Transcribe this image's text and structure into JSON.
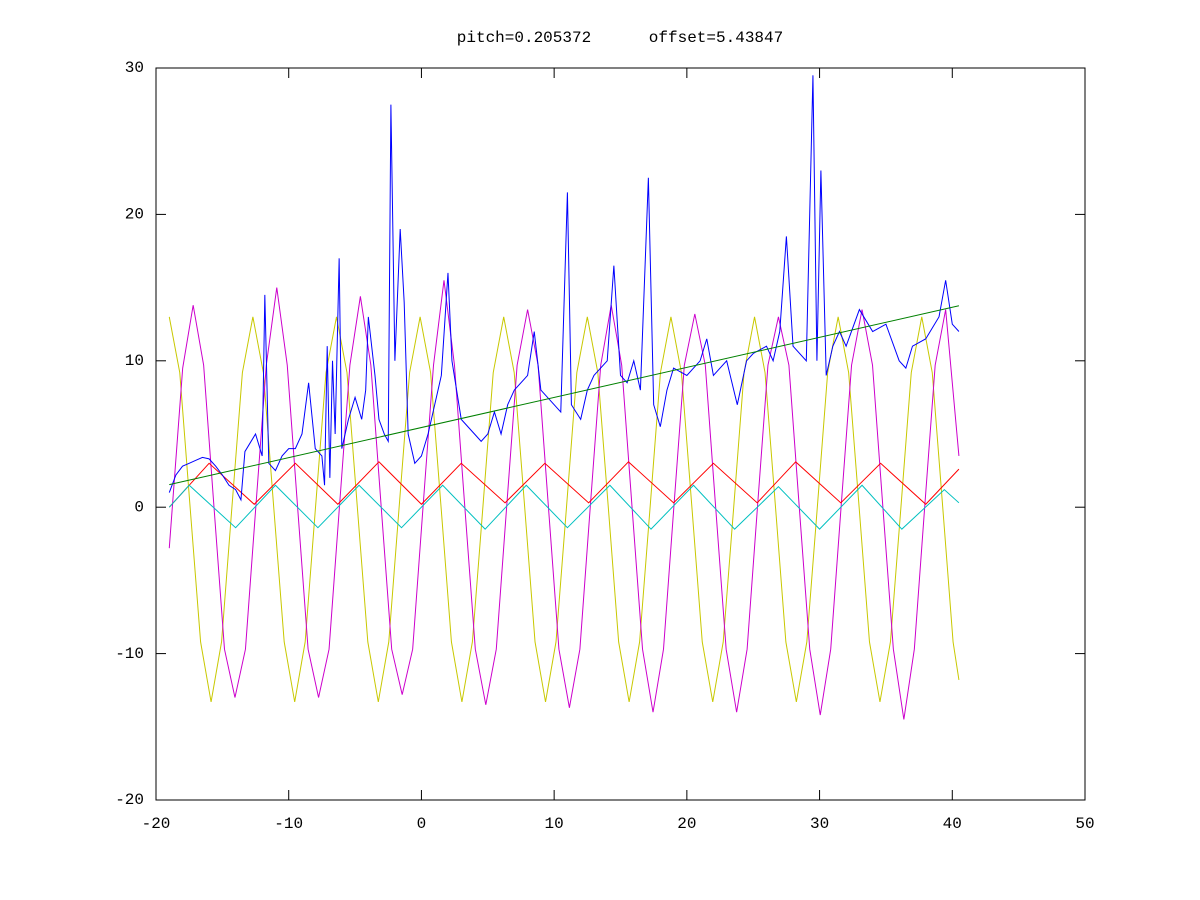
{
  "chart_data": {
    "type": "line",
    "title": "pitch=0.205372      offset=5.43847",
    "xlim": [
      -20,
      50
    ],
    "xticks": [
      -20,
      -10,
      0,
      10,
      20,
      30,
      40,
      50
    ],
    "ylim": [
      -20,
      30
    ],
    "yticks": [
      -20,
      -10,
      0,
      10,
      20,
      30
    ],
    "series": [
      {
        "color": "#c8c800",
        "x": [
          -19,
          -18.21,
          -17.43,
          -16.64,
          -15.85,
          -15.06,
          -14.28,
          -13.49,
          -12.7,
          -11.91,
          -11.13,
          -10.34,
          -9.55,
          -8.76,
          -7.98,
          -7.19,
          -6.4,
          -5.61,
          -4.83,
          -4.04,
          -3.25,
          -2.46,
          -1.68,
          -0.89,
          -0.1,
          0.69,
          1.48,
          2.26,
          3.05,
          3.84,
          4.63,
          5.41,
          6.2,
          6.99,
          7.78,
          8.56,
          9.35,
          10.14,
          10.93,
          11.71,
          12.5,
          13.29,
          14.08,
          14.86,
          15.65,
          16.44,
          17.23,
          18.01,
          18.8,
          19.59,
          20.38,
          21.16,
          21.95,
          22.74,
          23.53,
          24.31,
          25.1,
          25.89,
          26.68,
          27.46,
          28.25,
          29.04,
          29.83,
          30.61,
          31.4,
          32.19,
          32.98,
          33.76,
          34.55,
          35.34,
          36.13,
          36.91,
          37.7,
          38.49,
          39.28,
          40.06,
          40.5
        ],
        "values": [
          13,
          9.2,
          0,
          -9.2,
          -13.3,
          -9.2,
          0,
          9.2,
          13,
          9.2,
          0,
          -9.2,
          -13.3,
          -9.2,
          0,
          9.2,
          13,
          9.2,
          0,
          -9.2,
          -13.3,
          -9.2,
          0,
          9.2,
          13,
          9.2,
          0,
          -9.2,
          -13.3,
          -9.2,
          0,
          9.2,
          13,
          9.2,
          0,
          -9.2,
          -13.3,
          -9.2,
          0,
          9.2,
          13,
          9.2,
          0,
          -9.2,
          -13.3,
          -9.2,
          0,
          9.2,
          13,
          9.2,
          0,
          -9.2,
          -13.3,
          -9.2,
          0,
          9.2,
          13,
          9.2,
          0,
          -9.2,
          -13.3,
          -9.2,
          0,
          9.2,
          13,
          9.2,
          0,
          -9.2,
          -13.3,
          -9.2,
          0,
          9.2,
          13,
          9.2,
          0,
          -9.2,
          -11.8
        ]
      },
      {
        "color": "#cc00cc",
        "x": [
          -19,
          -17.99,
          -17.2,
          -16.41,
          -15.63,
          -14.84,
          -14.05,
          -13.26,
          -12.48,
          -11.69,
          -10.9,
          -10.11,
          -9.33,
          -8.54,
          -7.75,
          -6.96,
          -6.18,
          -5.39,
          -4.6,
          -3.81,
          -3.03,
          -2.24,
          -1.45,
          -0.66,
          0.12,
          0.91,
          1.7,
          2.49,
          3.27,
          4.06,
          4.85,
          5.64,
          6.42,
          7.21,
          8.0,
          8.79,
          9.57,
          10.36,
          11.15,
          11.94,
          12.72,
          13.51,
          14.3,
          15.09,
          15.87,
          16.66,
          17.45,
          18.24,
          19.02,
          19.81,
          20.6,
          21.39,
          22.17,
          22.96,
          23.75,
          24.54,
          25.32,
          26.11,
          26.9,
          27.69,
          28.47,
          29.26,
          30.05,
          30.84,
          31.62,
          32.41,
          33.2,
          33.99,
          34.77,
          35.56,
          36.35,
          37.14,
          37.92,
          38.71,
          39.5,
          40.5
        ],
        "values": [
          -2.8,
          9.5,
          13.8,
          9.7,
          0,
          -9.7,
          -13,
          -9.7,
          0,
          9.7,
          15,
          9.7,
          0,
          -9.7,
          -13,
          -9.7,
          0,
          9.7,
          14.4,
          9.7,
          0,
          -9.7,
          -12.8,
          -9.7,
          0,
          9.7,
          15.5,
          9.7,
          0,
          -9.7,
          -13.5,
          -9.7,
          0,
          9.7,
          13.5,
          9.7,
          0,
          -9.7,
          -13.7,
          -9.7,
          0,
          9.7,
          13.8,
          9.7,
          0,
          -9.7,
          -14,
          -9.7,
          0,
          9.7,
          13.2,
          9.7,
          0,
          -9.7,
          -14,
          -9.7,
          0,
          9.7,
          13,
          9.7,
          0,
          -9.7,
          -14.2,
          -9.7,
          0,
          9.7,
          13.5,
          9.7,
          0,
          -9.7,
          -14.5,
          -9.7,
          0,
          9.7,
          13.5,
          3.5
        ]
      },
      {
        "color": "#ff0000",
        "x": [
          -19,
          -16,
          -12.6,
          -9.5,
          -6.3,
          -3.2,
          0,
          3,
          6.3,
          9.3,
          12.6,
          15.6,
          19,
          22,
          25.3,
          28.2,
          31.6,
          34.6,
          38,
          40.5
        ],
        "values": [
          0,
          3,
          0.2,
          3,
          0.2,
          3.1,
          0.2,
          3,
          0.3,
          3,
          0.3,
          3.1,
          0.3,
          3,
          0.3,
          3.1,
          0.3,
          3,
          0.2,
          2.6
        ]
      },
      {
        "color": "#00c0c0",
        "x": [
          -19,
          -17.5,
          -14,
          -11,
          -7.8,
          -4.7,
          -1.5,
          1.6,
          4.8,
          7.9,
          11,
          14.2,
          17.3,
          20.5,
          23.6,
          26.9,
          30,
          33.2,
          36.2,
          39.4,
          40.5
        ],
        "values": [
          0,
          1.5,
          -1.4,
          1.5,
          -1.4,
          1.5,
          -1.4,
          1.5,
          -1.5,
          1.5,
          -1.4,
          1.5,
          -1.5,
          1.5,
          -1.5,
          1.4,
          -1.5,
          1.5,
          -1.5,
          1.2,
          0.3
        ]
      },
      {
        "color": "#0000ff",
        "x": [
          -19,
          -18.5,
          -18,
          -17.5,
          -17,
          -16.5,
          -16,
          -15.5,
          -15,
          -14.5,
          -14,
          -13.6,
          -13.3,
          -12.5,
          -12,
          -11.8,
          -11.5,
          -11,
          -10.5,
          -10,
          -9.5,
          -9,
          -8.5,
          -8,
          -7.5,
          -7.3,
          -7.1,
          -6.9,
          -6.7,
          -6.5,
          -6.2,
          -6,
          -5.5,
          -5,
          -4.5,
          -4.2,
          -4,
          -3.5,
          -3.2,
          -2.8,
          -2.5,
          -2.3,
          -2,
          -1.6,
          -1.3,
          -1,
          -0.5,
          0,
          0.5,
          1,
          1.5,
          2,
          2.3,
          3,
          4,
          4.5,
          5,
          5.5,
          6,
          6.5,
          7,
          8,
          8.5,
          9,
          10,
          10.5,
          11,
          11.3,
          12,
          12.5,
          13,
          14,
          14.5,
          15,
          15.5,
          16,
          16.5,
          17.1,
          17.5,
          18,
          18.5,
          19,
          20,
          21,
          21.5,
          22,
          23,
          23.8,
          24.5,
          25,
          26,
          26.5,
          27,
          27.5,
          28,
          29,
          29.5,
          29.8,
          30.1,
          30.5,
          31,
          31.5,
          32,
          33,
          34,
          35,
          36,
          36.5,
          37,
          38,
          39,
          39.5,
          40,
          40.5
        ],
        "values": [
          1,
          2.2,
          2.8,
          3,
          3.2,
          3.4,
          3.3,
          2.8,
          2.2,
          1.5,
          1.2,
          0.5,
          3.8,
          5,
          3.5,
          14.5,
          3,
          2.5,
          3.5,
          4,
          4,
          5,
          8.5,
          4,
          3.5,
          1.5,
          11,
          2,
          10,
          5,
          17,
          4,
          6,
          7.5,
          6,
          8,
          13,
          9,
          6,
          5,
          4.5,
          27.5,
          10,
          19,
          14,
          5,
          3,
          3.5,
          5,
          7,
          9,
          16,
          10,
          6,
          5,
          4.5,
          5,
          6.5,
          5,
          7,
          8,
          9,
          12,
          8,
          7,
          6.5,
          21.5,
          7,
          6,
          8,
          9,
          10,
          16.5,
          9,
          8.5,
          10,
          8,
          22.5,
          7,
          5.5,
          8,
          9.5,
          9,
          10,
          11.5,
          9,
          10,
          7,
          10,
          10.5,
          11,
          10,
          12,
          18.5,
          11,
          10,
          29.5,
          10,
          23,
          9,
          11,
          12,
          11,
          13.5,
          12,
          12.5,
          10,
          9.5,
          11,
          11.5,
          13,
          15.5,
          12.5,
          12
        ]
      },
      {
        "color": "#008000",
        "x": [
          -19,
          40.5
        ],
        "values": [
          1.54,
          13.76
        ]
      }
    ]
  }
}
